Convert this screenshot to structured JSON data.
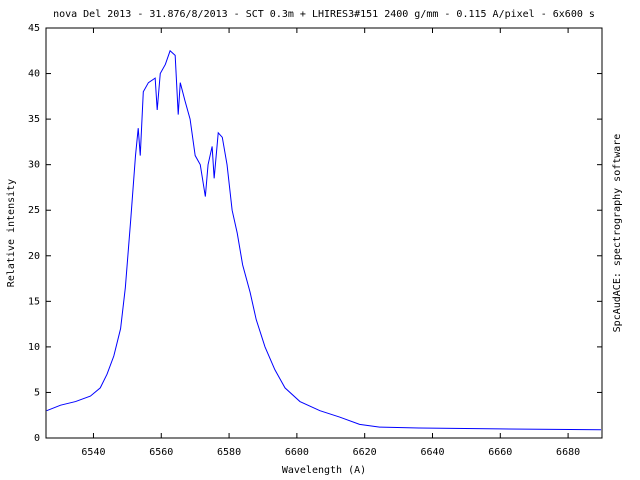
{
  "chart_data": {
    "type": "line",
    "title": "nova Del 2013 - 31.876/8/2013 - SCT 0.3m + LHIRES3#151 2400 g/mm - 0.115 A/pixel - 6x600 s",
    "x_label": "Wavelength (A)",
    "y_label": "Relative intensity",
    "side_note": "SpcAudACE: spectrography software",
    "xlim": [
      6526,
      6690
    ],
    "xticks": [
      6540,
      6560,
      6580,
      6600,
      6620,
      6640,
      6660,
      6680
    ],
    "ylim": [
      0,
      45
    ],
    "yticks": [
      0,
      5,
      10,
      15,
      20,
      25,
      30,
      35,
      40,
      45
    ],
    "grid": false,
    "series": [
      {
        "color": "#0000ff",
        "x": [
          6526.2,
          6530.3,
          6534.7,
          6539.1,
          6542,
          6544,
          6546,
          6548,
          6549.4,
          6551,
          6552.4,
          6553.2,
          6553.8,
          6554.7,
          6556.2,
          6558.2,
          6558.8,
          6559.7,
          6561.2,
          6562.6,
          6564.1,
          6565,
          6565.6,
          6567,
          6568.5,
          6570,
          6571.5,
          6573,
          6573.8,
          6575,
          6575.6,
          6576.8,
          6578,
          6579.4,
          6580.9,
          6582.4,
          6584,
          6586.2,
          6588,
          6590.6,
          6593.5,
          6596.5,
          6600.9,
          6606.8,
          6612.6,
          6618.5,
          6624.4,
          6636,
          6659.7,
          6689.7
        ],
        "values": [
          3.0,
          3.6,
          4.0,
          4.6,
          5.5,
          7,
          9,
          12,
          16.5,
          24,
          31,
          34,
          31,
          38,
          39,
          39.5,
          36,
          40,
          41,
          42.5,
          42,
          35.5,
          39,
          37,
          35,
          31,
          30,
          26.5,
          30,
          32,
          28.5,
          33.5,
          33,
          30,
          25,
          22.5,
          19,
          16,
          13,
          10,
          7.5,
          5.5,
          4,
          3,
          2.3,
          1.5,
          1.2,
          1.1,
          1.0,
          0.9
        ]
      }
    ]
  }
}
